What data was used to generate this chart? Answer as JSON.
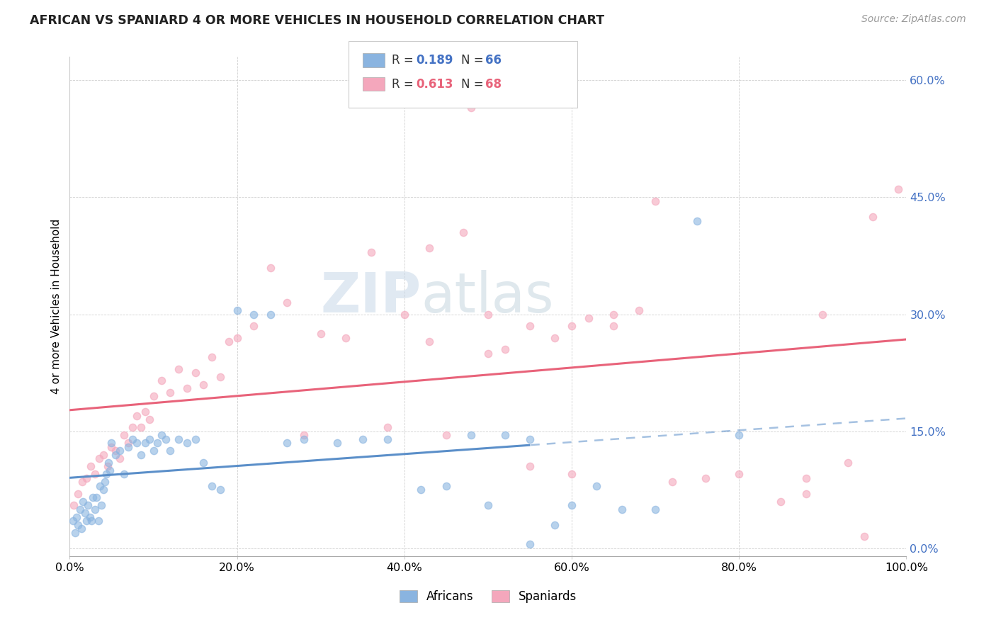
{
  "title": "AFRICAN VS SPANIARD 4 OR MORE VEHICLES IN HOUSEHOLD CORRELATION CHART",
  "source": "Source: ZipAtlas.com",
  "ylabel": "4 or more Vehicles in Household",
  "xlim": [
    0,
    1.0
  ],
  "ylim": [
    -0.01,
    0.63
  ],
  "yticks": [
    0,
    0.15,
    0.3,
    0.45,
    0.6
  ],
  "ytick_labels": [
    "0.0%",
    "15.0%",
    "30.0%",
    "45.0%",
    "60.0%"
  ],
  "xticks": [
    0,
    0.2,
    0.4,
    0.6,
    0.8,
    1.0
  ],
  "xtick_labels": [
    "0.0%",
    "20.0%",
    "40.0%",
    "60.0%",
    "80.0%",
    "100.0%"
  ],
  "african_R": "0.189",
  "african_N": "66",
  "spaniard_R": "0.613",
  "spaniard_N": "68",
  "african_color": "#8ab4e0",
  "spaniard_color": "#f4a7bc",
  "african_line_color": "#5b8fc9",
  "spaniard_line_color": "#e8637a",
  "watermark_zip": "ZIP",
  "watermark_atlas": "atlas",
  "african_x": [
    0.004,
    0.006,
    0.008,
    0.01,
    0.012,
    0.014,
    0.016,
    0.018,
    0.02,
    0.022,
    0.024,
    0.026,
    0.028,
    0.03,
    0.032,
    0.034,
    0.036,
    0.038,
    0.04,
    0.042,
    0.044,
    0.046,
    0.048,
    0.05,
    0.055,
    0.06,
    0.065,
    0.07,
    0.075,
    0.08,
    0.085,
    0.09,
    0.095,
    0.1,
    0.105,
    0.11,
    0.115,
    0.12,
    0.13,
    0.14,
    0.15,
    0.16,
    0.17,
    0.18,
    0.2,
    0.22,
    0.24,
    0.26,
    0.28,
    0.32,
    0.35,
    0.38,
    0.42,
    0.45,
    0.48,
    0.5,
    0.52,
    0.55,
    0.58,
    0.6,
    0.63,
    0.66,
    0.7,
    0.75,
    0.8,
    0.55
  ],
  "african_y": [
    0.035,
    0.02,
    0.04,
    0.03,
    0.05,
    0.025,
    0.06,
    0.045,
    0.035,
    0.055,
    0.04,
    0.035,
    0.065,
    0.05,
    0.065,
    0.035,
    0.08,
    0.055,
    0.075,
    0.085,
    0.095,
    0.11,
    0.1,
    0.135,
    0.12,
    0.125,
    0.095,
    0.13,
    0.14,
    0.135,
    0.12,
    0.135,
    0.14,
    0.125,
    0.135,
    0.145,
    0.14,
    0.125,
    0.14,
    0.135,
    0.14,
    0.11,
    0.08,
    0.075,
    0.305,
    0.3,
    0.3,
    0.135,
    0.14,
    0.135,
    0.14,
    0.14,
    0.075,
    0.08,
    0.145,
    0.055,
    0.145,
    0.14,
    0.03,
    0.055,
    0.08,
    0.05,
    0.05,
    0.42,
    0.145,
    0.005
  ],
  "spaniard_x": [
    0.005,
    0.01,
    0.015,
    0.02,
    0.025,
    0.03,
    0.035,
    0.04,
    0.045,
    0.05,
    0.055,
    0.06,
    0.065,
    0.07,
    0.075,
    0.08,
    0.085,
    0.09,
    0.095,
    0.1,
    0.11,
    0.12,
    0.13,
    0.14,
    0.15,
    0.16,
    0.17,
    0.18,
    0.19,
    0.2,
    0.22,
    0.24,
    0.26,
    0.28,
    0.3,
    0.33,
    0.36,
    0.38,
    0.4,
    0.43,
    0.45,
    0.47,
    0.48,
    0.5,
    0.52,
    0.55,
    0.58,
    0.6,
    0.62,
    0.65,
    0.68,
    0.72,
    0.76,
    0.8,
    0.85,
    0.88,
    0.9,
    0.93,
    0.96,
    0.99,
    0.43,
    0.5,
    0.55,
    0.6,
    0.65,
    0.7,
    0.88,
    0.95
  ],
  "spaniard_y": [
    0.055,
    0.07,
    0.085,
    0.09,
    0.105,
    0.095,
    0.115,
    0.12,
    0.105,
    0.13,
    0.125,
    0.115,
    0.145,
    0.135,
    0.155,
    0.17,
    0.155,
    0.175,
    0.165,
    0.195,
    0.215,
    0.2,
    0.23,
    0.205,
    0.225,
    0.21,
    0.245,
    0.22,
    0.265,
    0.27,
    0.285,
    0.36,
    0.315,
    0.145,
    0.275,
    0.27,
    0.38,
    0.155,
    0.3,
    0.265,
    0.145,
    0.405,
    0.565,
    0.3,
    0.255,
    0.105,
    0.27,
    0.095,
    0.295,
    0.285,
    0.305,
    0.085,
    0.09,
    0.095,
    0.06,
    0.09,
    0.3,
    0.11,
    0.425,
    0.46,
    0.385,
    0.25,
    0.285,
    0.285,
    0.3,
    0.445,
    0.07,
    0.015
  ]
}
